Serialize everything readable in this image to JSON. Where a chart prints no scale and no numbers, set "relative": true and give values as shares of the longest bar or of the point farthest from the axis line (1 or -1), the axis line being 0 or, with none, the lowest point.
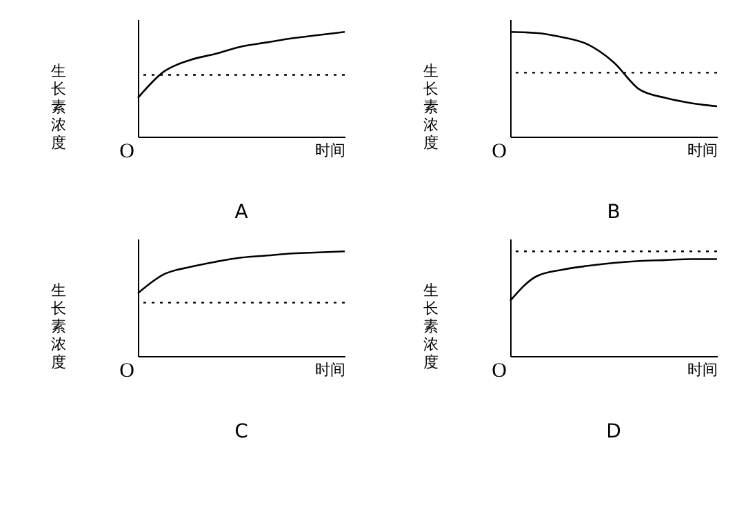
{
  "chart_data": [
    {
      "type": "line",
      "title": "A",
      "xlabel": "时间",
      "ylabel": "生长素浓度",
      "relative": true,
      "annotations": [
        "O"
      ],
      "categories": [
        null,
        null,
        null,
        null,
        null,
        null,
        null,
        null,
        null
      ],
      "color": "#000000",
      "values": [
        0.37,
        0.62,
        0.73,
        0.79,
        0.86,
        0.9,
        0.94,
        0.97,
        1
      ],
      "ref_lines": [
        {
          "axis": "y",
          "value": 0.59,
          "line_style": "dotted"
        }
      ]
    },
    {
      "type": "line",
      "title": "B",
      "xlabel": "时间",
      "ylabel": "生长素浓度",
      "relative": true,
      "annotations": [
        "O"
      ],
      "categories": [
        null,
        null,
        null,
        null,
        null,
        null,
        null,
        null,
        null
      ],
      "color": "#000000",
      "values": [
        1,
        0.99,
        0.95,
        0.88,
        0.71,
        0.45,
        0.37,
        0.32,
        0.29
      ],
      "ref_lines": [
        {
          "axis": "y",
          "value": 0.61,
          "line_style": "dotted"
        }
      ]
    },
    {
      "type": "line",
      "title": "C",
      "xlabel": "时间",
      "ylabel": "生长素浓度",
      "relative": true,
      "annotations": [
        "O"
      ],
      "categories": [
        null,
        null,
        null,
        null,
        null,
        null,
        null,
        null,
        null
      ],
      "color": "#000000",
      "values": [
        0.6,
        0.78,
        0.85,
        0.9,
        0.94,
        0.96,
        0.98,
        0.99,
        1
      ],
      "ref_lines": [
        {
          "axis": "y",
          "value": 0.51,
          "line_style": "dotted"
        }
      ]
    },
    {
      "type": "line",
      "title": "D",
      "xlabel": "时间",
      "ylabel": "生长素浓度",
      "relative": true,
      "annotations": [
        "O"
      ],
      "categories": [
        null,
        null,
        null,
        null,
        null,
        null,
        null,
        null,
        null
      ],
      "color": "#000000",
      "values": [
        0.57,
        0.82,
        0.89,
        0.93,
        0.96,
        0.98,
        0.99,
        1,
        1
      ],
      "ref_lines": [
        {
          "axis": "y",
          "value": 1.08,
          "line_style": "dotted"
        }
      ]
    }
  ]
}
